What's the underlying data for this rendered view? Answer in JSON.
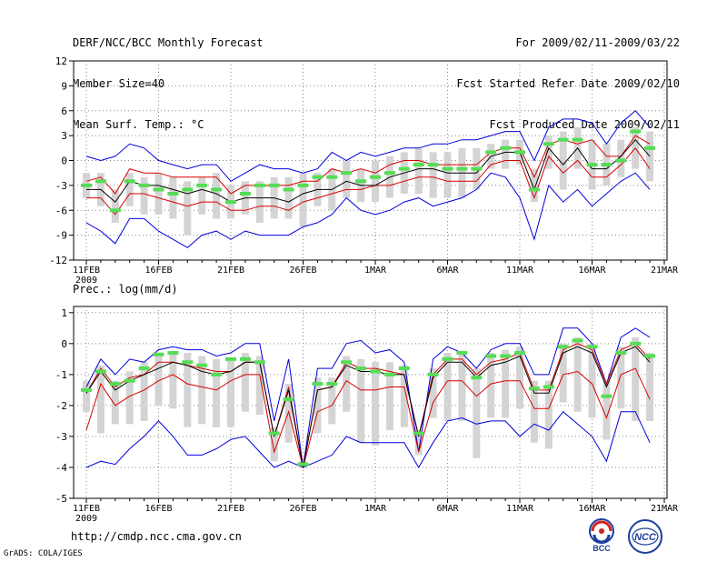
{
  "header": {
    "title": "DERF/NCC/BCC Monthly Forecast",
    "member_size": "Member Size=40",
    "variable": "Mean Surf. Temp.: °C",
    "period": "For 2009/02/11-2009/03/22",
    "started": "Fcst Started Refer Date 2009/02/10",
    "produced": "Fcst Produced Date 2009/02/11"
  },
  "footer": {
    "url": "http://cmdp.ncc.cma.gov.cn",
    "credit": "GrADS: COLA/IGES",
    "logo_bcc": "BCC",
    "logo_ncc": "NCC"
  },
  "colors": {
    "envelope": "#0000dd",
    "spread": "#d90000",
    "mean": "#000000",
    "box": "#d4d4d4",
    "marker": "#55dd55",
    "grid": "#888888"
  },
  "chart_data": [
    {
      "type": "line",
      "title": "Mean Surf. Temp.: °C",
      "x_tick_labels": [
        "11FEB",
        "16FEB",
        "21FEB",
        "26FEB",
        "1MAR",
        "6MAR",
        "11MAR",
        "16MAR",
        "21MAR"
      ],
      "x_year_label": "2009",
      "y_ticks": [
        12,
        9,
        6,
        3,
        0,
        -3,
        -6,
        -9,
        -12
      ],
      "ylim": [
        -12,
        12
      ],
      "days": 40,
      "series": [
        {
          "name": "max",
          "color": "#0000dd",
          "values": [
            0.5,
            0,
            0.5,
            2,
            1.5,
            0,
            -0.5,
            -1,
            -0.5,
            -0.5,
            -2.5,
            -1.5,
            -0.5,
            -1,
            -1,
            -1.5,
            -1,
            1,
            0,
            1,
            0.5,
            1,
            1.5,
            1.5,
            2,
            2,
            2.5,
            2.5,
            3,
            3.5,
            3.5,
            0,
            4,
            5,
            5,
            4.5,
            2,
            4.5,
            6,
            4
          ]
        },
        {
          "name": "upper",
          "color": "#d90000",
          "values": [
            -2.5,
            -2,
            -4,
            -1,
            -1.5,
            -1.5,
            -2,
            -2,
            -2,
            -2,
            -4,
            -3,
            -3,
            -3,
            -3,
            -2.5,
            -2.5,
            -1,
            -1.5,
            -1,
            -1.5,
            -0.5,
            0,
            0,
            -0.5,
            -0.5,
            -0.5,
            -0.5,
            1,
            1.5,
            1.5,
            -2,
            2,
            2.5,
            2,
            2.5,
            0.5,
            0.5,
            3,
            2
          ]
        },
        {
          "name": "mean",
          "color": "#000000",
          "values": [
            -3.5,
            -3.5,
            -5,
            -2.5,
            -3,
            -3,
            -3.5,
            -4,
            -3.5,
            -4,
            -5,
            -4.5,
            -4.5,
            -4.5,
            -5,
            -4,
            -3.5,
            -3.5,
            -2.5,
            -3,
            -3,
            -2,
            -1.5,
            -1,
            -1,
            -1.5,
            -1.5,
            -1.5,
            0.5,
            1,
            1,
            -3.5,
            1.5,
            -0.5,
            1.5,
            -1,
            -1,
            0.5,
            2.5,
            0.5
          ]
        },
        {
          "name": "lower",
          "color": "#d90000",
          "values": [
            -4.5,
            -4.5,
            -6.5,
            -4,
            -4,
            -4.5,
            -5,
            -5.5,
            -5,
            -5,
            -6,
            -6,
            -5.5,
            -5.5,
            -6,
            -5,
            -4.5,
            -4,
            -3.5,
            -3.5,
            -3,
            -3,
            -2.5,
            -2,
            -2,
            -2.5,
            -2.5,
            -2.5,
            -0.5,
            0,
            0,
            -4.5,
            0.5,
            -1.5,
            0,
            -2,
            -2,
            -0.5,
            1.5,
            -1
          ]
        },
        {
          "name": "min",
          "color": "#0000dd",
          "values": [
            -7.5,
            -8.5,
            -10,
            -7,
            -7,
            -8.5,
            -9.5,
            -10.5,
            -9,
            -8.5,
            -9.5,
            -8.5,
            -9,
            -9,
            -9,
            -8,
            -7.5,
            -6.5,
            -4.5,
            -6,
            -6.5,
            -6,
            -5,
            -4.5,
            -5.5,
            -5,
            -4.5,
            -3.5,
            -1.5,
            -2,
            -4.5,
            -9.5,
            -3,
            -5,
            -3.5,
            -5.5,
            -4,
            -2.5,
            -1.5,
            -3.5
          ]
        },
        {
          "name": "green-marker",
          "color": "#55dd55",
          "values": [
            -3,
            -2.5,
            -6,
            -2.5,
            -3,
            -3.5,
            -4,
            -3.5,
            -3,
            -3.5,
            -5,
            -4,
            -3,
            -3,
            -3.5,
            -3,
            -2,
            -2,
            -1.5,
            -2.5,
            -2,
            -1.5,
            -1,
            -0.5,
            -0.5,
            -1,
            -1,
            -1,
            1,
            1.5,
            1,
            -3.5,
            2,
            2.5,
            2.5,
            -0.5,
            -0.5,
            0,
            3.5,
            1.5
          ]
        },
        {
          "name": "box-top",
          "color": "#d4d4d4",
          "values": [
            -1.5,
            -1.5,
            -3.5,
            -1.5,
            -2,
            -1.5,
            -2,
            -2.5,
            -2,
            -1.5,
            -3,
            -2.5,
            -2.5,
            -2,
            -2,
            -1.5,
            -1.5,
            -1,
            0,
            -1,
            0,
            0.5,
            1,
            1.5,
            1,
            1,
            1.5,
            1.5,
            2,
            2.5,
            2.5,
            -1,
            3,
            3.5,
            4,
            2.5,
            2,
            2.5,
            4,
            3.5
          ]
        },
        {
          "name": "box-bottom",
          "color": "#d4d4d4",
          "values": [
            -4.5,
            -5.5,
            -7.5,
            -5.5,
            -6.5,
            -6.5,
            -7,
            -9,
            -6.5,
            -7,
            -7,
            -6.5,
            -7.5,
            -7,
            -7,
            -8,
            -5.5,
            -6,
            -4.5,
            -5,
            -5,
            -4.5,
            -4,
            -4,
            -4.5,
            -4.5,
            -4.5,
            -3.5,
            -1,
            -1,
            -0.5,
            -5,
            -1,
            -3.5,
            -1,
            -3.5,
            -3,
            -2,
            -1,
            -2.5
          ]
        }
      ]
    },
    {
      "type": "line",
      "title": "Prec.: log(mm/d)",
      "x_tick_labels": [
        "11FEB",
        "16FEB",
        "21FEB",
        "26FEB",
        "1MAR",
        "6MAR",
        "11MAR",
        "16MAR",
        "21MAR"
      ],
      "x_year_label": "2009",
      "y_ticks": [
        1,
        0,
        -1,
        -2,
        -3,
        -4,
        -5
      ],
      "ylim": [
        -5,
        1.2
      ],
      "days": 40,
      "series": [
        {
          "name": "max",
          "color": "#0000dd",
          "values": [
            -1.4,
            -0.5,
            -1,
            -0.5,
            -0.6,
            -0.2,
            -0.1,
            -0.2,
            -0.2,
            -0.4,
            -0.3,
            0,
            0,
            -2.5,
            -0.5,
            -4,
            -0.8,
            -0.8,
            0,
            0.1,
            -0.3,
            -0.2,
            -0.6,
            -3.5,
            -0.5,
            -0.1,
            -0.3,
            -0.8,
            -0.2,
            0,
            0,
            -1,
            -1,
            0.5,
            0.5,
            0,
            -1.3,
            0.2,
            0.5,
            0.2
          ]
        },
        {
          "name": "upper",
          "color": "#d90000",
          "values": [
            -1.6,
            -0.8,
            -1.4,
            -1.1,
            -1,
            -0.6,
            -0.6,
            -0.7,
            -0.8,
            -0.9,
            -0.9,
            -0.6,
            -0.6,
            -3,
            -1.4,
            -4,
            -1.5,
            -1.4,
            -0.6,
            -0.8,
            -0.8,
            -0.9,
            -1,
            -3,
            -1,
            -0.5,
            -0.5,
            -1,
            -0.6,
            -0.5,
            -0.3,
            -1.5,
            -1.5,
            -0.2,
            0,
            -0.2,
            -1.3,
            -0.2,
            0,
            -0.5
          ]
        },
        {
          "name": "mean",
          "color": "#000000",
          "values": [
            -1.6,
            -0.9,
            -1.5,
            -1.2,
            -1,
            -0.8,
            -0.6,
            -0.7,
            -0.9,
            -1,
            -0.9,
            -0.6,
            -0.6,
            -3,
            -1.5,
            -4,
            -1.5,
            -1.4,
            -0.7,
            -0.9,
            -0.9,
            -1,
            -1,
            -3,
            -1.1,
            -0.6,
            -0.6,
            -1.1,
            -0.7,
            -0.6,
            -0.4,
            -1.6,
            -1.6,
            -0.3,
            -0.1,
            -0.3,
            -1.4,
            -0.3,
            -0.1,
            -0.6
          ]
        },
        {
          "name": "lower",
          "color": "#d90000",
          "values": [
            -2.8,
            -1.3,
            -2,
            -1.7,
            -1.5,
            -1.2,
            -1,
            -1.3,
            -1.4,
            -1.5,
            -1.2,
            -1,
            -1,
            -3.5,
            -2.2,
            -4,
            -2.2,
            -2,
            -1.2,
            -1.5,
            -1.5,
            -1.4,
            -1.4,
            -3.5,
            -1.9,
            -1.2,
            -1.2,
            -1.7,
            -1.3,
            -1.2,
            -1.2,
            -2.1,
            -2.1,
            -1,
            -0.9,
            -1.3,
            -2.4,
            -1,
            -0.8,
            -1.8
          ]
        },
        {
          "name": "min",
          "color": "#0000dd",
          "values": [
            -4,
            -3.8,
            -3.9,
            -3.4,
            -3,
            -2.5,
            -3,
            -3.6,
            -3.6,
            -3.4,
            -3.1,
            -3,
            -3.5,
            -4,
            -3.8,
            -4,
            -3.8,
            -3.6,
            -3,
            -3.2,
            -3.2,
            -3.2,
            -3.2,
            -4,
            -3.2,
            -2.5,
            -2.4,
            -2.6,
            -2.5,
            -2.5,
            -3,
            -2.6,
            -2.8,
            -2.2,
            -2.6,
            -3,
            -3.8,
            -2.2,
            -2.2,
            -3.2
          ]
        },
        {
          "name": "green-marker",
          "color": "#55dd55",
          "values": [
            -1.5,
            -0.9,
            -1.3,
            -1.2,
            -0.8,
            -0.35,
            -0.3,
            -0.6,
            -0.7,
            -1,
            -0.5,
            -0.5,
            -0.6,
            -2.9,
            -1.8,
            -3.9,
            -1.3,
            -1.3,
            -0.6,
            -0.8,
            -0.9,
            -1,
            -0.8,
            -2.9,
            -1,
            -0.5,
            -0.3,
            -1.1,
            -0.4,
            -0.4,
            -0.3,
            -1.45,
            -1.4,
            -0.1,
            0.1,
            -0.1,
            -1.7,
            -0.3,
            0,
            -0.4
          ]
        },
        {
          "name": "box-top",
          "color": "#d4d4d4",
          "values": [
            -1.2,
            -0.7,
            -1.2,
            -0.9,
            -0.6,
            -0.3,
            -0.3,
            -0.3,
            -0.4,
            -0.5,
            -0.5,
            -0.3,
            -0.4,
            -2.7,
            -1.3,
            -3.8,
            -1.1,
            -1.1,
            -0.4,
            -0.5,
            -0.6,
            -0.6,
            -0.7,
            -2.8,
            -0.8,
            -0.3,
            -0.3,
            -0.8,
            -0.3,
            -0.2,
            -0.1,
            -1.2,
            -1.2,
            0,
            0.2,
            0,
            -1.2,
            -0.1,
            0.2,
            -0.3
          ]
        },
        {
          "name": "box-bottom",
          "color": "#d4d4d4",
          "values": [
            -2.2,
            -2.9,
            -2.6,
            -2.6,
            -2.5,
            -2,
            -2.1,
            -2.7,
            -2.6,
            -2.7,
            -2.7,
            -2.2,
            -2.3,
            -3.8,
            -3.2,
            -3.9,
            -2.9,
            -2.6,
            -2.2,
            -3.2,
            -3.3,
            -2.8,
            -2.7,
            -3.6,
            -2.4,
            -2.5,
            -2.5,
            -3.7,
            -2.4,
            -2.4,
            -2.1,
            -3.2,
            -3.4,
            -1.9,
            -2.2,
            -2.4,
            -3.1,
            -2.1,
            -2.5,
            -2.5
          ]
        }
      ]
    }
  ]
}
